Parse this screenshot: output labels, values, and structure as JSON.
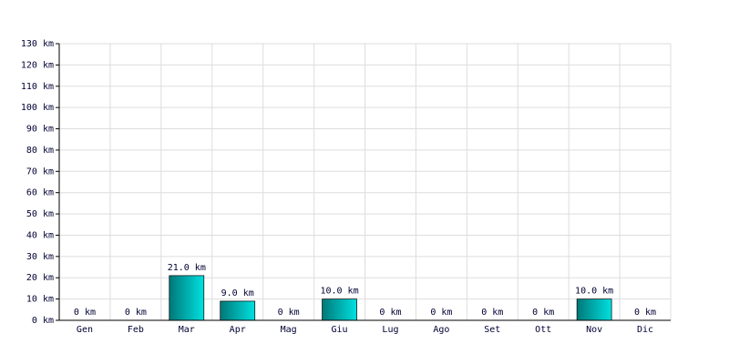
{
  "chart_data": {
    "type": "bar",
    "categories": [
      "Gen",
      "Feb",
      "Mar",
      "Apr",
      "Mag",
      "Giu",
      "Lug",
      "Ago",
      "Set",
      "Ott",
      "Nov",
      "Dic"
    ],
    "values": [
      0,
      0,
      21,
      9,
      0,
      10,
      0,
      0,
      0,
      0,
      10,
      0
    ],
    "value_labels": [
      "0 km",
      "0 km",
      "21.0 km",
      "9.0 km",
      "0 km",
      "10.0 km",
      "0 km",
      "0 km",
      "0 km",
      "0 km",
      "10.0 km",
      "0 km"
    ],
    "color": "#00e0e0",
    "ylim": [
      0,
      130
    ],
    "yticks": [
      {
        "value": 0,
        "label": "0 km"
      },
      {
        "value": 10,
        "label": "10 km"
      },
      {
        "value": 20,
        "label": "20 km"
      },
      {
        "value": 30,
        "label": "30 km"
      },
      {
        "value": 40,
        "label": "40 km"
      },
      {
        "value": 50,
        "label": "50 km"
      },
      {
        "value": 60,
        "label": "60 km"
      },
      {
        "value": 70,
        "label": "70 km"
      },
      {
        "value": 80,
        "label": "80 km"
      },
      {
        "value": 90,
        "label": "90 km"
      },
      {
        "value": 100,
        "label": "100 km"
      },
      {
        "value": 110,
        "label": "110 km"
      },
      {
        "value": 120,
        "label": "120 km"
      },
      {
        "value": 130,
        "label": "130 km"
      }
    ],
    "grid": true
  }
}
